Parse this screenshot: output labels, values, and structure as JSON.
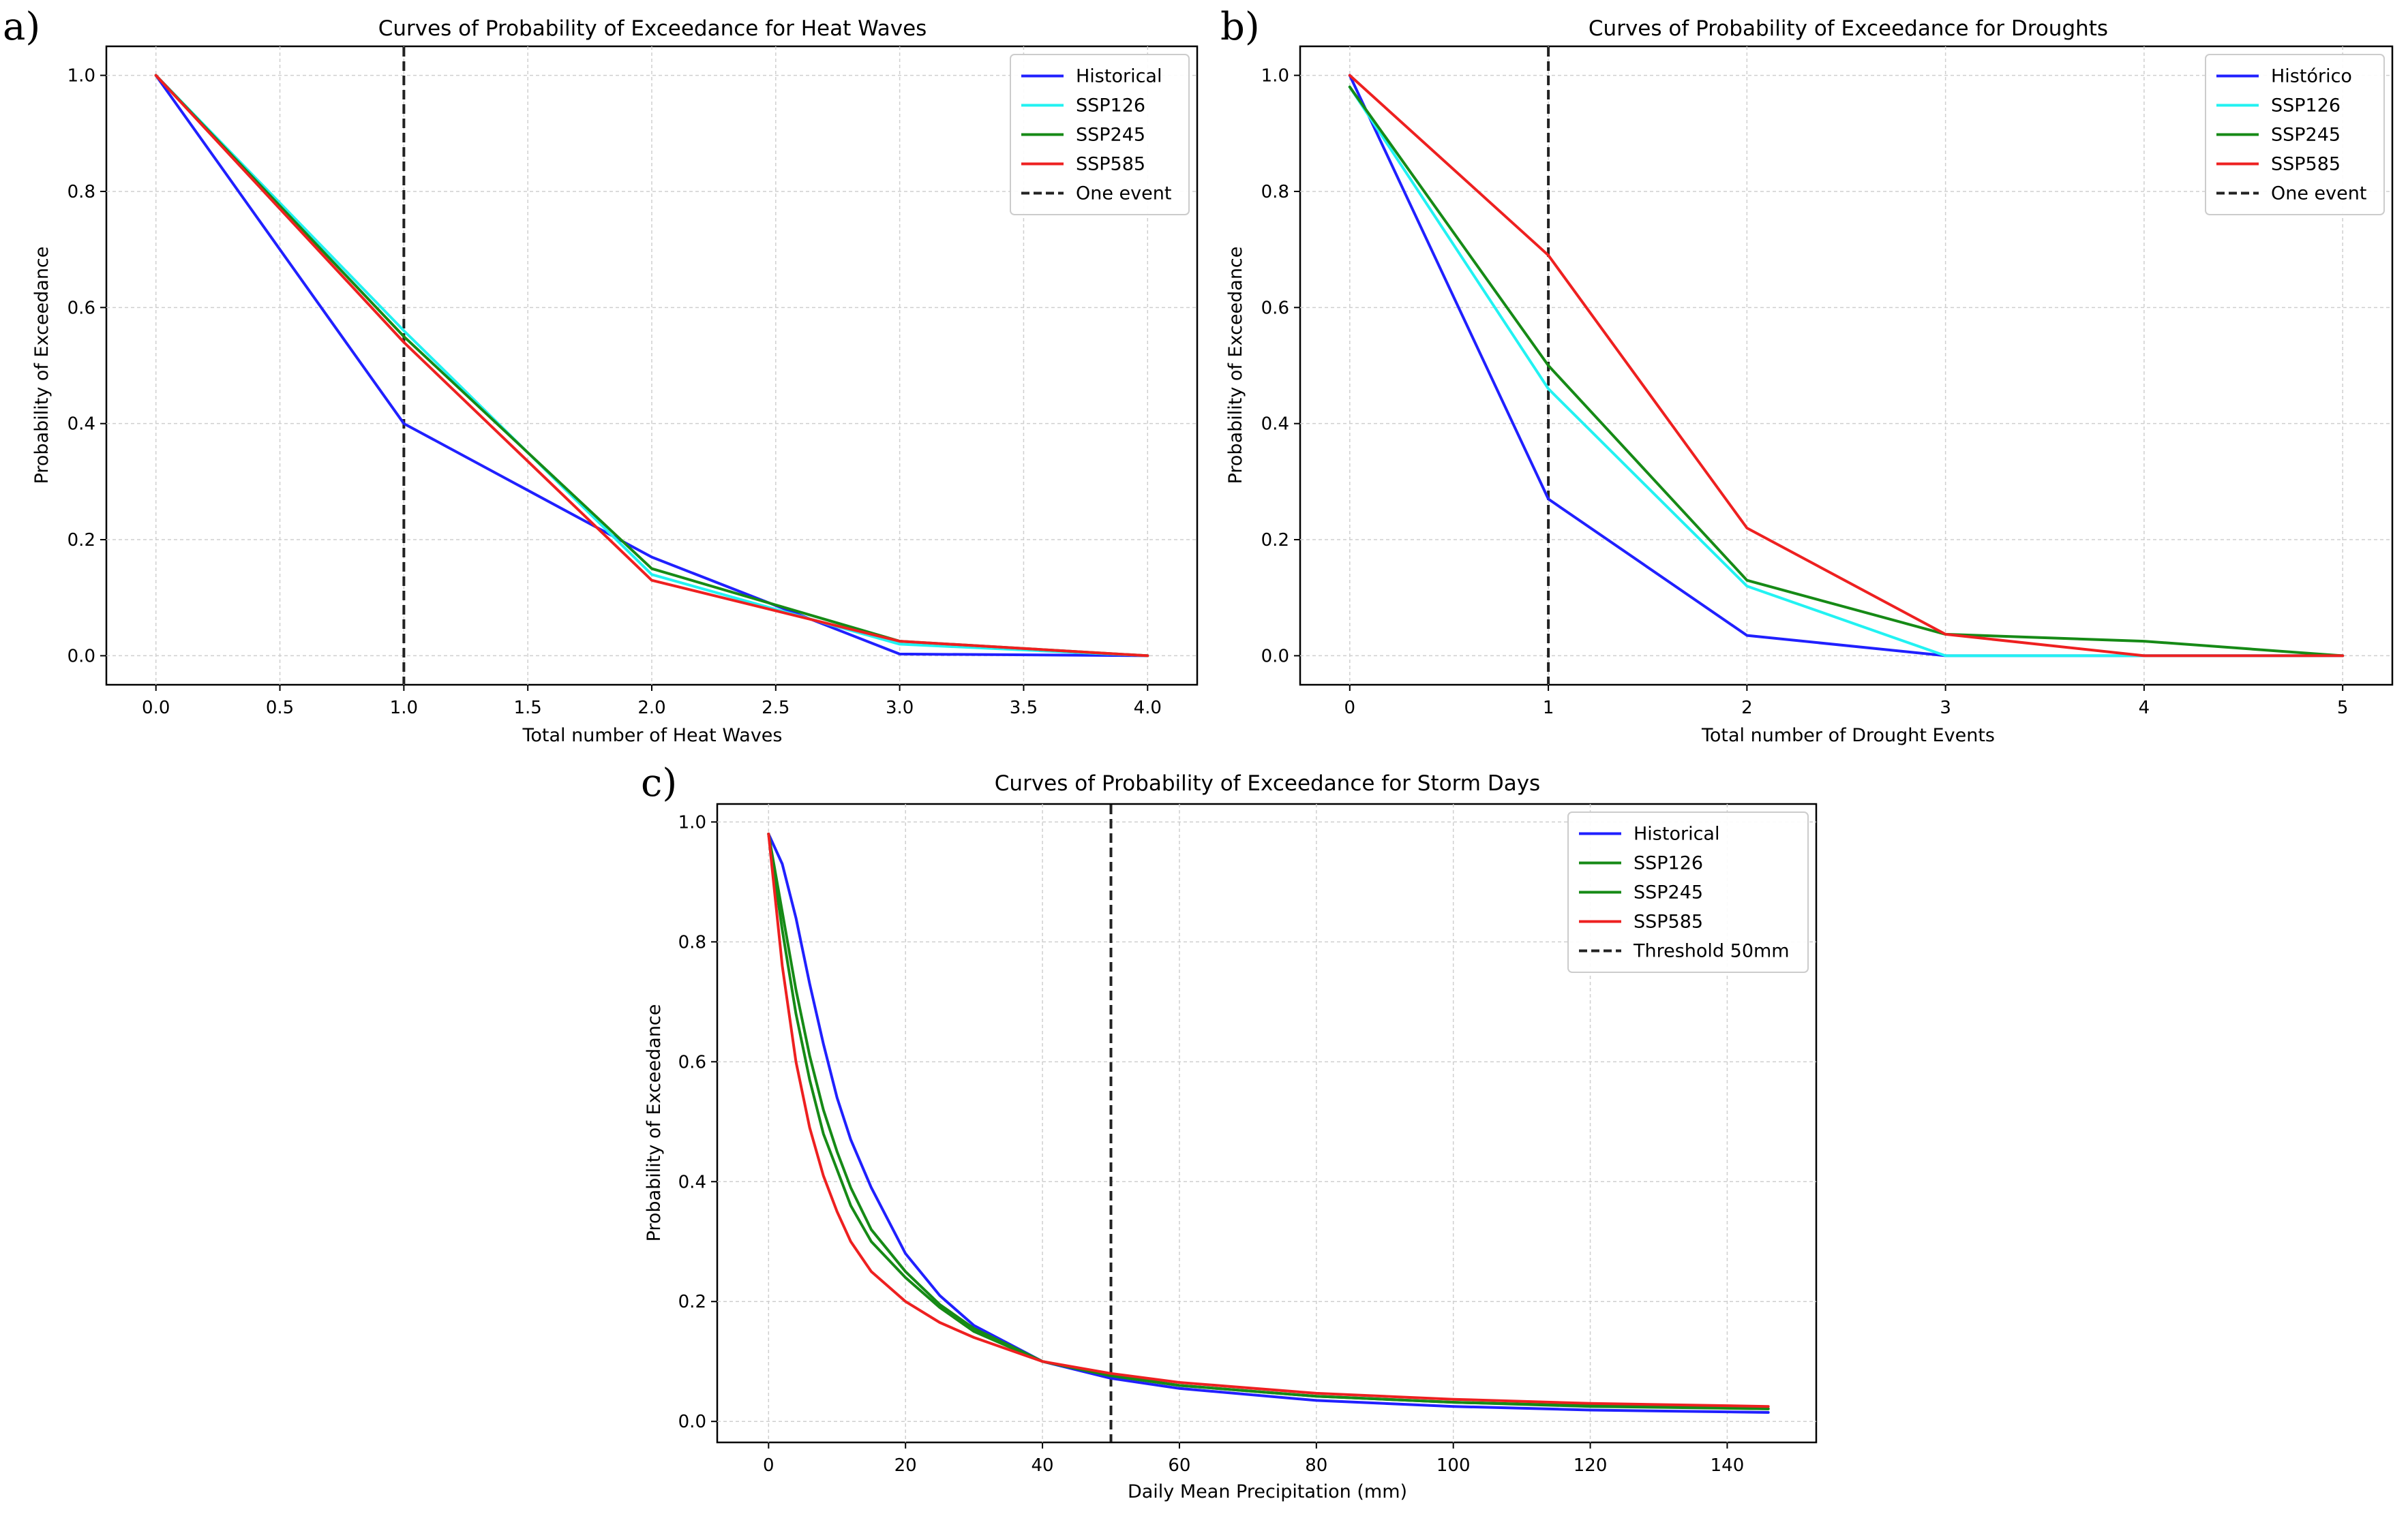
{
  "colors": {
    "Historical": "#2020ff",
    "SSP126_cyan": "#22f2f2",
    "SSP126_green": "#168a16",
    "SSP245": "#168a16",
    "SSP585": "#ee2020",
    "threshold": "#222222",
    "grid": "#cfcfcf"
  },
  "chart_data": [
    {
      "panel": "a)",
      "type": "line",
      "title": "Curves of Probability of Exceedance for Heat Waves",
      "xlabel": "Total number of Heat Waves",
      "ylabel": "Probability of Exceedance",
      "xlim": [
        -0.2,
        4.2
      ],
      "ylim": [
        -0.05,
        1.05
      ],
      "xticks": [
        0,
        0.5,
        1,
        1.5,
        2,
        2.5,
        3,
        3.5,
        4
      ],
      "xtick_labels": [
        "0.0",
        "0.5",
        "1.0",
        "1.5",
        "2.0",
        "2.5",
        "3.0",
        "3.5",
        "4.0"
      ],
      "yticks": [
        0,
        0.2,
        0.4,
        0.6,
        0.8,
        1.0
      ],
      "ytick_labels": [
        "0.0",
        "0.2",
        "0.4",
        "0.6",
        "0.8",
        "1.0"
      ],
      "grid": true,
      "legend": "top-right",
      "threshold": {
        "x": 1,
        "label": "One event"
      },
      "series": [
        {
          "name": "Historical",
          "color": "Historical",
          "x": [
            0,
            1,
            2,
            3,
            4
          ],
          "values": [
            1.0,
            0.4,
            0.17,
            0.003,
            0.0
          ]
        },
        {
          "name": "SSP126",
          "color": "SSP126_cyan",
          "x": [
            0,
            1,
            2,
            3,
            4
          ],
          "values": [
            1.0,
            0.56,
            0.14,
            0.02,
            0.0
          ]
        },
        {
          "name": "SSP245",
          "color": "SSP245",
          "x": [
            0,
            1,
            2,
            3,
            4
          ],
          "values": [
            1.0,
            0.55,
            0.15,
            0.025,
            0.0
          ]
        },
        {
          "name": "SSP585",
          "color": "SSP585",
          "x": [
            0,
            1,
            2,
            3,
            4
          ],
          "values": [
            1.0,
            0.54,
            0.13,
            0.025,
            0.0
          ]
        }
      ]
    },
    {
      "panel": "b)",
      "type": "line",
      "title": "Curves of Probability of Exceedance for Droughts",
      "xlabel": "Total number of Drought Events",
      "ylabel": "Probability of Exceedance",
      "xlim": [
        -0.25,
        5.25
      ],
      "ylim": [
        -0.05,
        1.05
      ],
      "xticks": [
        0,
        1,
        2,
        3,
        4,
        5
      ],
      "xtick_labels": [
        "0",
        "1",
        "2",
        "3",
        "4",
        "5"
      ],
      "yticks": [
        0,
        0.2,
        0.4,
        0.6,
        0.8,
        1.0
      ],
      "ytick_labels": [
        "0.0",
        "0.2",
        "0.4",
        "0.6",
        "0.8",
        "1.0"
      ],
      "grid": true,
      "legend": "top-right",
      "threshold": {
        "x": 1,
        "label": "One event"
      },
      "series": [
        {
          "name": "Histórico",
          "color": "Historical",
          "x": [
            0,
            1,
            2,
            3,
            4,
            5
          ],
          "values": [
            1.0,
            0.27,
            0.035,
            0.0,
            0.0,
            0.0
          ]
        },
        {
          "name": "SSP126",
          "color": "SSP126_cyan",
          "x": [
            0,
            1,
            2,
            3,
            4,
            5
          ],
          "values": [
            0.98,
            0.46,
            0.12,
            0.0,
            0.0,
            0.0
          ]
        },
        {
          "name": "SSP245",
          "color": "SSP245",
          "x": [
            0,
            1,
            2,
            3,
            4,
            5
          ],
          "values": [
            0.98,
            0.5,
            0.13,
            0.037,
            0.025,
            0.0
          ]
        },
        {
          "name": "SSP585",
          "color": "SSP585",
          "x": [
            0,
            1,
            2,
            3,
            4,
            5
          ],
          "values": [
            1.0,
            0.69,
            0.22,
            0.037,
            0.0,
            0.0
          ]
        }
      ]
    },
    {
      "panel": "c)",
      "type": "line",
      "title": "Curves of Probability of Exceedance for Storm Days",
      "xlabel": "Daily Mean Precipitation (mm)",
      "ylabel": "Probability of Exceedance",
      "xlim": [
        -7.5,
        153
      ],
      "ylim": [
        -0.035,
        1.03
      ],
      "xticks": [
        0,
        20,
        40,
        60,
        80,
        100,
        120,
        140
      ],
      "xtick_labels": [
        "0",
        "20",
        "40",
        "60",
        "80",
        "100",
        "120",
        "140"
      ],
      "yticks": [
        0,
        0.2,
        0.4,
        0.6,
        0.8,
        1.0
      ],
      "ytick_labels": [
        "0.0",
        "0.2",
        "0.4",
        "0.6",
        "0.8",
        "1.0"
      ],
      "grid": true,
      "legend": "top-right",
      "threshold": {
        "x": 50,
        "label": "Threshold 50mm"
      },
      "series": [
        {
          "name": "Historical",
          "color": "Historical",
          "x": [
            0,
            2,
            4,
            6,
            8,
            10,
            12,
            15,
            20,
            25,
            30,
            40,
            50,
            60,
            80,
            100,
            120,
            146
          ],
          "values": [
            0.98,
            0.93,
            0.84,
            0.73,
            0.63,
            0.54,
            0.47,
            0.39,
            0.28,
            0.21,
            0.16,
            0.1,
            0.072,
            0.055,
            0.035,
            0.025,
            0.019,
            0.015
          ]
        },
        {
          "name": "SSP126",
          "color": "SSP126_green",
          "x": [
            0,
            2,
            4,
            6,
            8,
            10,
            12,
            15,
            20,
            25,
            30,
            40,
            50,
            60,
            80,
            100,
            120,
            146
          ],
          "values": [
            0.98,
            0.82,
            0.68,
            0.57,
            0.48,
            0.42,
            0.36,
            0.3,
            0.24,
            0.19,
            0.15,
            0.1,
            0.077,
            0.06,
            0.042,
            0.032,
            0.025,
            0.021
          ]
        },
        {
          "name": "SSP245",
          "color": "SSP245",
          "x": [
            0,
            2,
            4,
            6,
            8,
            10,
            12,
            15,
            20,
            25,
            30,
            40,
            50,
            60,
            80,
            100,
            120,
            146
          ],
          "values": [
            0.98,
            0.85,
            0.72,
            0.61,
            0.52,
            0.45,
            0.39,
            0.32,
            0.25,
            0.195,
            0.155,
            0.1,
            0.076,
            0.06,
            0.042,
            0.032,
            0.026,
            0.021
          ]
        },
        {
          "name": "SSP585",
          "color": "SSP585",
          "x": [
            0,
            2,
            4,
            6,
            8,
            10,
            12,
            15,
            20,
            25,
            30,
            40,
            50,
            60,
            80,
            100,
            120,
            146
          ],
          "values": [
            0.98,
            0.76,
            0.6,
            0.49,
            0.41,
            0.35,
            0.3,
            0.25,
            0.2,
            0.165,
            0.14,
            0.1,
            0.08,
            0.065,
            0.047,
            0.037,
            0.03,
            0.025
          ]
        }
      ]
    }
  ]
}
